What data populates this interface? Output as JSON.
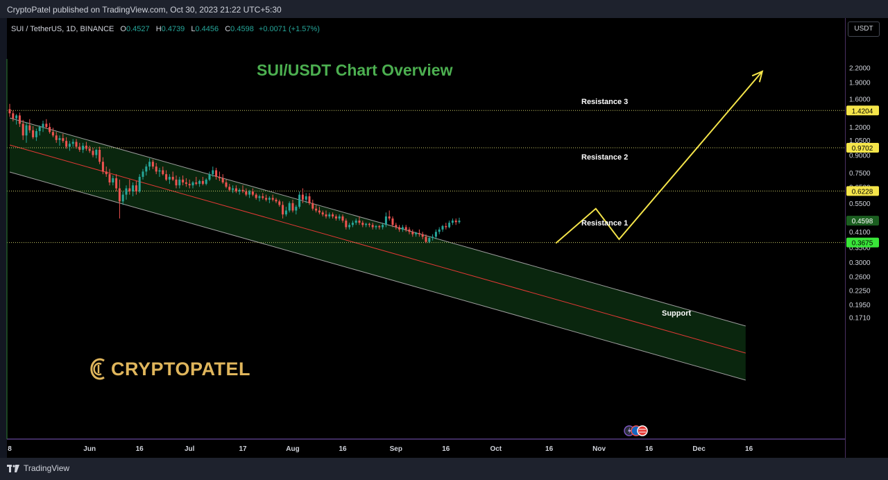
{
  "header": {
    "published": "CryptoPatel published on TradingView.com, Oct 30, 2023 21:22 UTC+5:30"
  },
  "legend": {
    "symbol": "SUI / TetherUS, 1D, BINANCE",
    "o_label": "O",
    "o_value": "0.4527",
    "h_label": "H",
    "h_value": "0.4739",
    "l_label": "L",
    "l_value": "0.4456",
    "c_label": "C",
    "c_value": "0.4598",
    "change": "+0.0071 (+1.57%)"
  },
  "currency_button": "USDT",
  "footer": {
    "brand": "TradingView"
  },
  "watermark": {
    "text": "CRYPTOPATEL"
  },
  "colors": {
    "background": "#000000",
    "up": "#26a69a",
    "down": "#ef5350",
    "channel_fill": "#0b2a10",
    "channel_line": "#9e9e9e",
    "midline": "#e53935",
    "projection": "#f5e54a",
    "title": "#4caf50",
    "level_tag": "#f5e54a",
    "support_tag": "#39e639",
    "current_tag": "#1b5e20",
    "logo": "#e0b65c"
  },
  "chart_data": {
    "type": "candlestick",
    "title": "SUI/USDT Chart Overview",
    "scale": "log",
    "ylim": [
      0.16,
      2.4
    ],
    "x_ticks": [
      "8",
      "Jun",
      "16",
      "Jul",
      "17",
      "Aug",
      "16",
      "Sep",
      "16",
      "Oct",
      "16",
      "Nov",
      "16",
      "Dec",
      "16"
    ],
    "y_ticks": [
      "2.2000",
      "1.9000",
      "1.6000",
      "1.2000",
      "1.0500",
      "0.9000",
      "0.7500",
      "0.6500",
      "0.5500",
      "0.4100",
      "0.3500",
      "0.3000",
      "0.2600",
      "0.2250",
      "0.1950",
      "0.1710"
    ],
    "levels": [
      {
        "name": "Resistance 3",
        "value": "1.4204"
      },
      {
        "name": "Resistance 2",
        "value": "0.9702"
      },
      {
        "name": "Resistance 1",
        "value": "0.6228"
      },
      {
        "name": "Support",
        "value": "0.3675"
      }
    ],
    "current_price": "0.4598",
    "candles": [
      [
        1.44,
        1.52,
        1.33,
        1.38
      ],
      [
        1.38,
        1.42,
        1.27,
        1.31
      ],
      [
        1.31,
        1.37,
        1.23,
        1.35
      ],
      [
        1.35,
        1.39,
        1.2,
        1.24
      ],
      [
        1.24,
        1.29,
        1.05,
        1.1
      ],
      [
        1.1,
        1.26,
        1.02,
        1.22
      ],
      [
        1.22,
        1.3,
        1.13,
        1.16
      ],
      [
        1.16,
        1.21,
        1.06,
        1.08
      ],
      [
        1.08,
        1.18,
        1.04,
        1.15
      ],
      [
        1.15,
        1.22,
        1.1,
        1.2
      ],
      [
        1.2,
        1.28,
        1.14,
        1.24
      ],
      [
        1.24,
        1.3,
        1.18,
        1.2
      ],
      [
        1.2,
        1.25,
        1.12,
        1.14
      ],
      [
        1.14,
        1.19,
        1.08,
        1.1
      ],
      [
        1.1,
        1.14,
        1.02,
        1.05
      ],
      [
        1.05,
        1.1,
        0.99,
        1.07
      ],
      [
        1.07,
        1.12,
        1.02,
        1.04
      ],
      [
        1.04,
        1.08,
        0.96,
        0.98
      ],
      [
        0.98,
        1.04,
        0.94,
        1.01
      ],
      [
        1.01,
        1.06,
        0.98,
        1.03
      ],
      [
        1.03,
        1.06,
        0.96,
        0.98
      ],
      [
        0.98,
        1.02,
        0.93,
        0.95
      ],
      [
        0.95,
        1.02,
        0.92,
        0.99
      ],
      [
        0.99,
        1.03,
        0.94,
        0.96
      ],
      [
        0.96,
        0.99,
        0.92,
        0.94
      ],
      [
        0.94,
        0.97,
        0.88,
        0.9
      ],
      [
        0.9,
        0.96,
        0.87,
        0.95
      ],
      [
        0.95,
        0.98,
        0.82,
        0.84
      ],
      [
        0.84,
        0.88,
        0.74,
        0.76
      ],
      [
        0.76,
        0.8,
        0.72,
        0.74
      ],
      [
        0.74,
        0.78,
        0.66,
        0.68
      ],
      [
        0.68,
        0.73,
        0.66,
        0.71
      ],
      [
        0.71,
        0.74,
        0.62,
        0.64
      ],
      [
        0.64,
        0.7,
        0.47,
        0.56
      ],
      [
        0.56,
        0.62,
        0.54,
        0.6
      ],
      [
        0.6,
        0.66,
        0.57,
        0.64
      ],
      [
        0.64,
        0.7,
        0.6,
        0.62
      ],
      [
        0.62,
        0.68,
        0.59,
        0.66
      ],
      [
        0.66,
        0.69,
        0.6,
        0.62
      ],
      [
        0.62,
        0.74,
        0.61,
        0.72
      ],
      [
        0.72,
        0.78,
        0.7,
        0.76
      ],
      [
        0.76,
        0.82,
        0.73,
        0.8
      ],
      [
        0.8,
        0.87,
        0.77,
        0.84
      ],
      [
        0.84,
        0.86,
        0.78,
        0.8
      ],
      [
        0.8,
        0.83,
        0.74,
        0.76
      ],
      [
        0.76,
        0.79,
        0.72,
        0.77
      ],
      [
        0.77,
        0.8,
        0.73,
        0.74
      ],
      [
        0.74,
        0.77,
        0.69,
        0.7
      ],
      [
        0.7,
        0.74,
        0.67,
        0.72
      ],
      [
        0.72,
        0.76,
        0.69,
        0.7
      ],
      [
        0.7,
        0.73,
        0.64,
        0.66
      ],
      [
        0.66,
        0.72,
        0.64,
        0.7
      ],
      [
        0.7,
        0.73,
        0.66,
        0.68
      ],
      [
        0.68,
        0.71,
        0.65,
        0.67
      ],
      [
        0.67,
        0.7,
        0.64,
        0.66
      ],
      [
        0.66,
        0.69,
        0.64,
        0.68
      ],
      [
        0.68,
        0.72,
        0.66,
        0.67
      ],
      [
        0.67,
        0.7,
        0.65,
        0.69
      ],
      [
        0.69,
        0.72,
        0.66,
        0.67
      ],
      [
        0.67,
        0.71,
        0.66,
        0.7
      ],
      [
        0.7,
        0.76,
        0.69,
        0.74
      ],
      [
        0.74,
        0.8,
        0.72,
        0.77
      ],
      [
        0.77,
        0.79,
        0.7,
        0.72
      ],
      [
        0.72,
        0.76,
        0.69,
        0.71
      ],
      [
        0.71,
        0.74,
        0.67,
        0.68
      ],
      [
        0.68,
        0.7,
        0.64,
        0.65
      ],
      [
        0.65,
        0.67,
        0.62,
        0.63
      ],
      [
        0.63,
        0.66,
        0.61,
        0.64
      ],
      [
        0.64,
        0.66,
        0.61,
        0.62
      ],
      [
        0.62,
        0.64,
        0.6,
        0.63
      ],
      [
        0.63,
        0.66,
        0.61,
        0.62
      ],
      [
        0.62,
        0.64,
        0.59,
        0.6
      ],
      [
        0.6,
        0.63,
        0.58,
        0.62
      ],
      [
        0.62,
        0.64,
        0.59,
        0.6
      ],
      [
        0.6,
        0.61,
        0.57,
        0.58
      ],
      [
        0.58,
        0.6,
        0.56,
        0.59
      ],
      [
        0.59,
        0.61,
        0.57,
        0.58
      ],
      [
        0.58,
        0.6,
        0.56,
        0.57
      ],
      [
        0.57,
        0.59,
        0.55,
        0.58
      ],
      [
        0.58,
        0.6,
        0.56,
        0.57
      ],
      [
        0.57,
        0.58,
        0.55,
        0.56
      ],
      [
        0.56,
        0.57,
        0.53,
        0.54
      ],
      [
        0.54,
        0.56,
        0.47,
        0.49
      ],
      [
        0.49,
        0.53,
        0.48,
        0.51
      ],
      [
        0.51,
        0.56,
        0.5,
        0.55
      ],
      [
        0.55,
        0.57,
        0.5,
        0.51
      ],
      [
        0.51,
        0.54,
        0.49,
        0.53
      ],
      [
        0.53,
        0.62,
        0.52,
        0.6
      ],
      [
        0.6,
        0.64,
        0.55,
        0.57
      ],
      [
        0.57,
        0.61,
        0.55,
        0.59
      ],
      [
        0.59,
        0.61,
        0.54,
        0.55
      ],
      [
        0.55,
        0.57,
        0.51,
        0.52
      ],
      [
        0.52,
        0.54,
        0.5,
        0.51
      ],
      [
        0.51,
        0.53,
        0.49,
        0.5
      ],
      [
        0.5,
        0.51,
        0.48,
        0.49
      ],
      [
        0.49,
        0.51,
        0.47,
        0.48
      ],
      [
        0.48,
        0.5,
        0.47,
        0.49
      ],
      [
        0.49,
        0.5,
        0.47,
        0.48
      ],
      [
        0.48,
        0.49,
        0.46,
        0.47
      ],
      [
        0.47,
        0.49,
        0.46,
        0.48
      ],
      [
        0.48,
        0.49,
        0.45,
        0.46
      ],
      [
        0.46,
        0.47,
        0.42,
        0.43
      ],
      [
        0.43,
        0.45,
        0.42,
        0.44
      ],
      [
        0.44,
        0.46,
        0.43,
        0.45
      ],
      [
        0.45,
        0.47,
        0.44,
        0.46
      ],
      [
        0.46,
        0.48,
        0.44,
        0.45
      ],
      [
        0.45,
        0.46,
        0.43,
        0.44
      ],
      [
        0.44,
        0.45,
        0.43,
        0.445
      ],
      [
        0.445,
        0.45,
        0.43,
        0.44
      ],
      [
        0.44,
        0.45,
        0.42,
        0.43
      ],
      [
        0.43,
        0.44,
        0.42,
        0.435
      ],
      [
        0.435,
        0.44,
        0.42,
        0.43
      ],
      [
        0.43,
        0.45,
        0.42,
        0.44
      ],
      [
        0.44,
        0.5,
        0.43,
        0.48
      ],
      [
        0.48,
        0.51,
        0.46,
        0.47
      ],
      [
        0.47,
        0.48,
        0.43,
        0.44
      ],
      [
        0.44,
        0.45,
        0.42,
        0.43
      ],
      [
        0.43,
        0.44,
        0.41,
        0.42
      ],
      [
        0.42,
        0.44,
        0.41,
        0.43
      ],
      [
        0.43,
        0.44,
        0.41,
        0.42
      ],
      [
        0.42,
        0.43,
        0.4,
        0.41
      ],
      [
        0.41,
        0.42,
        0.39,
        0.4
      ],
      [
        0.4,
        0.41,
        0.39,
        0.405
      ],
      [
        0.405,
        0.42,
        0.39,
        0.4
      ],
      [
        0.4,
        0.41,
        0.38,
        0.39
      ],
      [
        0.39,
        0.4,
        0.365,
        0.37
      ],
      [
        0.37,
        0.39,
        0.365,
        0.385
      ],
      [
        0.385,
        0.4,
        0.375,
        0.39
      ],
      [
        0.39,
        0.42,
        0.38,
        0.41
      ],
      [
        0.41,
        0.43,
        0.4,
        0.42
      ],
      [
        0.42,
        0.44,
        0.41,
        0.435
      ],
      [
        0.435,
        0.45,
        0.42,
        0.43
      ],
      [
        0.43,
        0.46,
        0.425,
        0.45
      ],
      [
        0.45,
        0.47,
        0.44,
        0.46
      ],
      [
        0.46,
        0.47,
        0.44,
        0.4527
      ],
      [
        0.4527,
        0.4739,
        0.4456,
        0.4598
      ]
    ],
    "projection": [
      {
        "date": "Oct 19",
        "price": 0.365
      },
      {
        "date": "Oct 31",
        "price": 0.52
      },
      {
        "date": "Nov 7",
        "price": 0.38
      },
      {
        "date": "Dec 20",
        "price": 2.12
      }
    ]
  }
}
